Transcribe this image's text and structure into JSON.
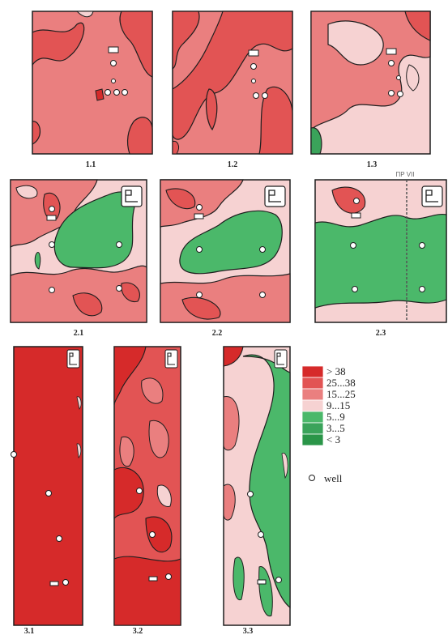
{
  "colors": {
    "c38": "#d62a2a",
    "c25": "#e25454",
    "c15": "#ea7f7f",
    "c9": "#f6d2d2",
    "c5": "#4bb86a",
    "c3": "#3aa35a",
    "c0": "#2a9548",
    "border": "#1e1e1e"
  },
  "panels": {
    "p11": "1.1",
    "p12": "1.2",
    "p13": "1.3",
    "p21": "2.1",
    "p22": "2.2",
    "p23": "2.3",
    "p31": "3.1",
    "p32": "3.2",
    "p33": "3.3"
  },
  "profile_label": "ПР VII",
  "legend": {
    "items": [
      {
        "label": "> 38",
        "color": "#d62a2a"
      },
      {
        "label": "25...38",
        "color": "#e25454"
      },
      {
        "label": "15...25",
        "color": "#ea7f7f"
      },
      {
        "label": "9...15",
        "color": "#f6d2d2"
      },
      {
        "label": "5...9",
        "color": "#4bb86a"
      },
      {
        "label": "3...5",
        "color": "#3aa35a"
      },
      {
        "label": "< 3",
        "color": "#2a9548"
      }
    ],
    "well_label": "well"
  }
}
